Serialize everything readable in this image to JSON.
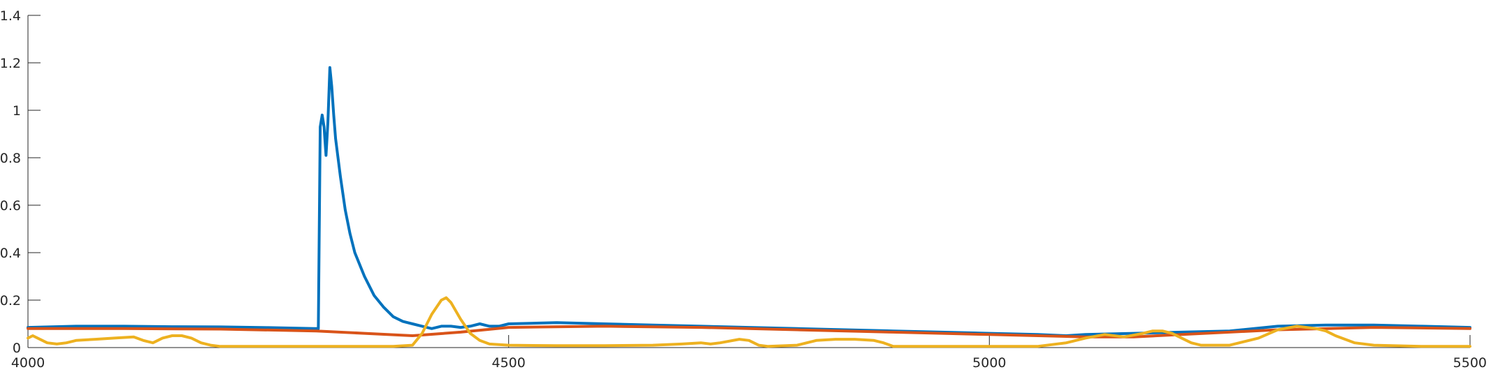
{
  "chart_data": {
    "type": "line",
    "title": "",
    "xlabel": "",
    "ylabel": "",
    "xlim": [
      4000,
      5500
    ],
    "ylim": [
      0,
      1.4
    ],
    "xticks": [
      4000,
      4500,
      5000,
      5500
    ],
    "yticks": [
      0,
      0.2,
      0.4,
      0.6,
      0.8,
      1,
      1.2,
      1.4
    ],
    "xtick_labels": [
      "4000",
      "4500",
      "5000",
      "5500"
    ],
    "ytick_labels": [
      "0",
      "0.2",
      "0.4",
      "0.6",
      "0.8",
      "1",
      "1.2",
      "1.4"
    ],
    "grid": false,
    "legend": "none",
    "series": [
      {
        "color": "#0072BD",
        "x": [
          4000,
          4050,
          4100,
          4150,
          4200,
          4250,
          4298,
          4302,
          4304,
          4306,
          4308,
          4310,
          4312,
          4314,
          4316,
          4318,
          4320,
          4325,
          4330,
          4335,
          4340,
          4350,
          4360,
          4370,
          4380,
          4390,
          4400,
          4410,
          4420,
          4430,
          4440,
          4450,
          4460,
          4470,
          4480,
          4490,
          4500,
          4550,
          4600,
          4650,
          4700,
          4750,
          4800,
          4850,
          4900,
          4950,
          5000,
          5050,
          5080,
          5100,
          5150,
          5200,
          5250,
          5300,
          5350,
          5400,
          5450,
          5500
        ],
        "y": [
          0.085,
          0.09,
          0.09,
          0.088,
          0.087,
          0.084,
          0.08,
          0.08,
          0.93,
          0.98,
          0.93,
          0.81,
          0.95,
          1.18,
          1.1,
          0.98,
          0.88,
          0.72,
          0.58,
          0.48,
          0.4,
          0.3,
          0.22,
          0.17,
          0.13,
          0.11,
          0.1,
          0.09,
          0.08,
          0.09,
          0.09,
          0.085,
          0.09,
          0.1,
          0.09,
          0.09,
          0.1,
          0.105,
          0.1,
          0.095,
          0.09,
          0.085,
          0.08,
          0.075,
          0.07,
          0.065,
          0.06,
          0.055,
          0.05,
          0.055,
          0.06,
          0.065,
          0.07,
          0.09,
          0.095,
          0.095,
          0.09,
          0.085
        ]
      },
      {
        "color": "#D95319",
        "x": [
          4000,
          4100,
          4200,
          4300,
          4350,
          4400,
          4450,
          4500,
          4600,
          4700,
          4800,
          4900,
          5000,
          5100,
          5150,
          5200,
          5300,
          5400,
          5500
        ],
        "y": [
          0.08,
          0.08,
          0.078,
          0.07,
          0.06,
          0.05,
          0.065,
          0.085,
          0.09,
          0.085,
          0.075,
          0.065,
          0.055,
          0.045,
          0.045,
          0.055,
          0.075,
          0.085,
          0.08
        ]
      },
      {
        "color": "#EDB120",
        "x": [
          4000,
          4005,
          4010,
          4020,
          4030,
          4040,
          4050,
          4070,
          4090,
          4110,
          4120,
          4130,
          4140,
          4150,
          4160,
          4170,
          4180,
          4190,
          4200,
          4250,
          4300,
          4350,
          4380,
          4400,
          4410,
          4420,
          4430,
          4435,
          4440,
          4450,
          4460,
          4470,
          4480,
          4500,
          4550,
          4600,
          4650,
          4680,
          4700,
          4710,
          4720,
          4740,
          4750,
          4760,
          4770,
          4800,
          4820,
          4840,
          4860,
          4880,
          4890,
          4900,
          4950,
          5000,
          5050,
          5080,
          5100,
          5120,
          5140,
          5160,
          5170,
          5180,
          5190,
          5200,
          5210,
          5220,
          5250,
          5280,
          5300,
          5320,
          5340,
          5350,
          5360,
          5380,
          5400,
          5450,
          5500
        ],
        "y": [
          0.04,
          0.05,
          0.04,
          0.02,
          0.015,
          0.02,
          0.03,
          0.035,
          0.04,
          0.045,
          0.03,
          0.02,
          0.04,
          0.05,
          0.05,
          0.04,
          0.02,
          0.01,
          0.005,
          0.005,
          0.005,
          0.005,
          0.005,
          0.01,
          0.06,
          0.14,
          0.2,
          0.21,
          0.19,
          0.12,
          0.06,
          0.03,
          0.015,
          0.01,
          0.008,
          0.008,
          0.01,
          0.015,
          0.02,
          0.015,
          0.02,
          0.035,
          0.03,
          0.01,
          0.005,
          0.01,
          0.03,
          0.035,
          0.035,
          0.03,
          0.02,
          0.005,
          0.005,
          0.005,
          0.005,
          0.02,
          0.04,
          0.055,
          0.045,
          0.06,
          0.07,
          0.07,
          0.06,
          0.04,
          0.02,
          0.01,
          0.01,
          0.04,
          0.075,
          0.09,
          0.08,
          0.07,
          0.05,
          0.02,
          0.01,
          0.005,
          0.005
        ]
      }
    ]
  }
}
